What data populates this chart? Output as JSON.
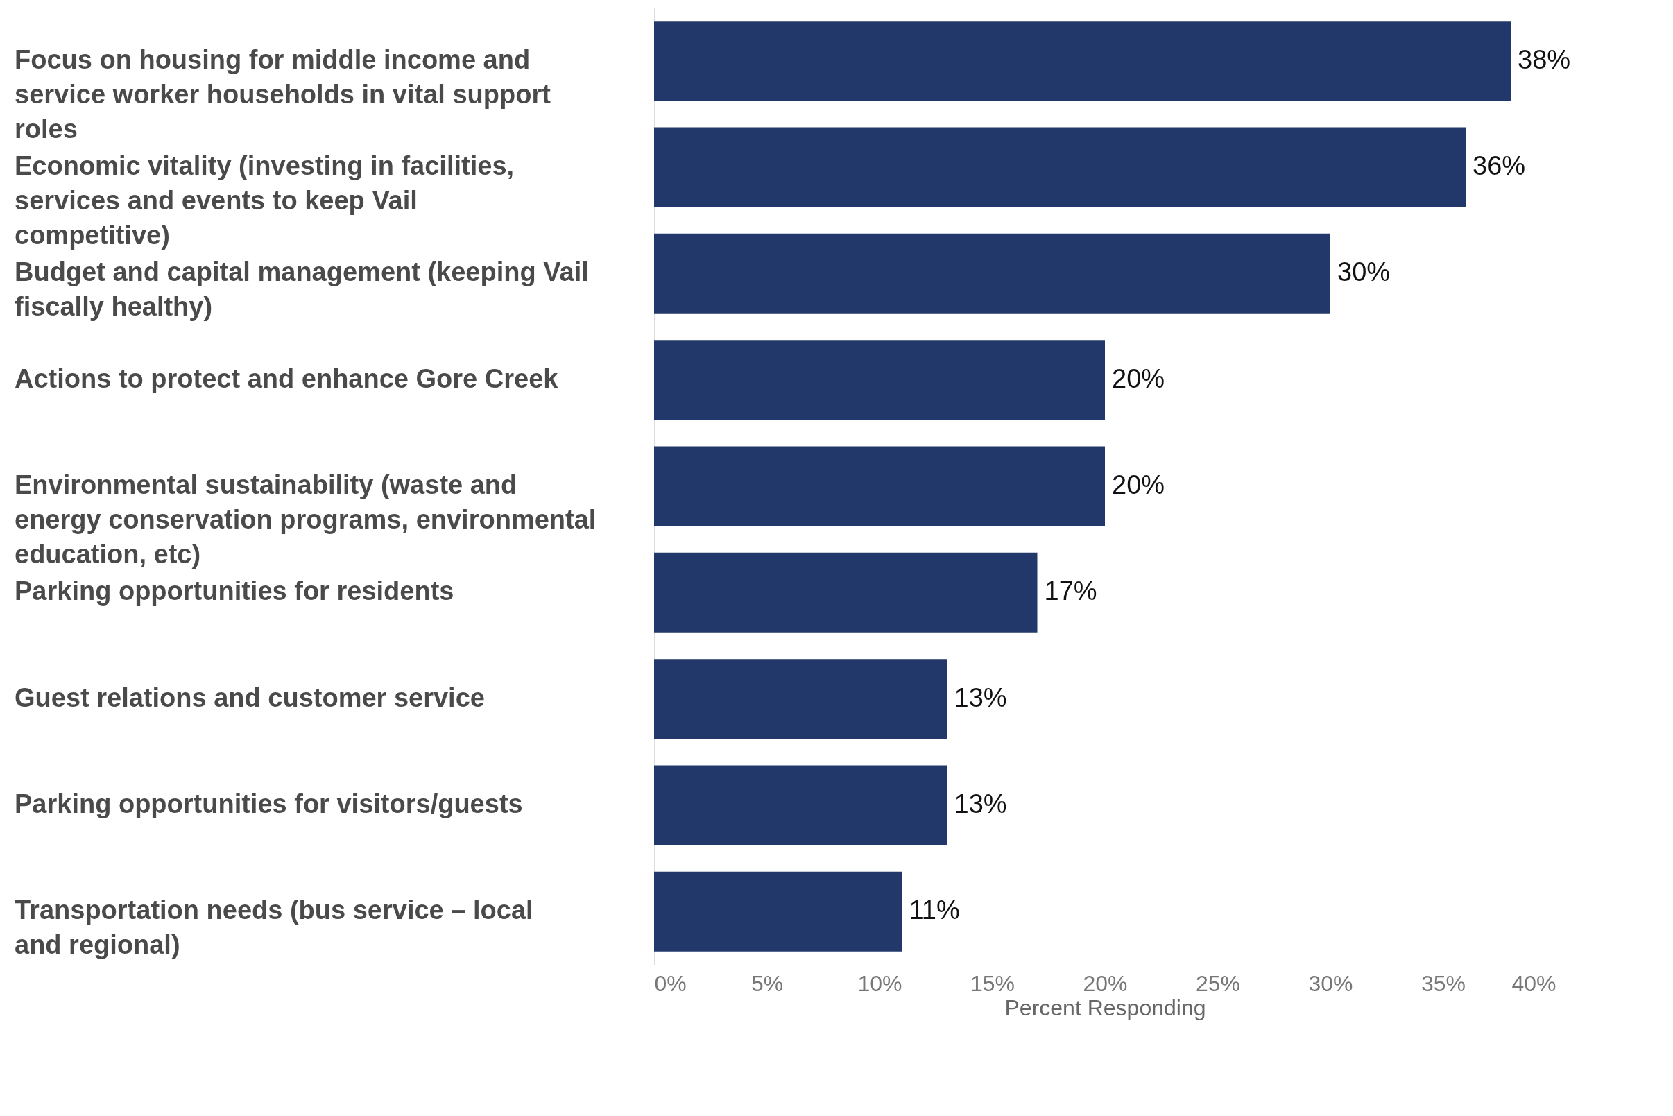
{
  "chart_data": {
    "type": "bar",
    "orientation": "horizontal",
    "xlabel": "Percent Responding",
    "categories": [
      "Focus on housing for middle income and service worker households in vital support roles",
      "Economic vitality (investing in facilities, services and events to keep Vail competitive)",
      "Budget and capital management (keeping Vail fiscally healthy)",
      "Actions to protect and enhance Gore Creek",
      "Environmental sustainability (waste and energy conservation programs, environmental education, etc)",
      "Parking opportunities for residents",
      "Guest relations and customer service",
      "Parking opportunities for visitors/guests",
      "Transportation needs (bus service – local and regional)"
    ],
    "values": [
      38,
      36,
      30,
      20,
      20,
      17,
      13,
      13,
      11
    ],
    "value_labels": [
      "38%",
      "36%",
      "30%",
      "20%",
      "20%",
      "17%",
      "13%",
      "13%",
      "11%"
    ],
    "color": "#22386a",
    "xlim": [
      0,
      40
    ],
    "xticks": [
      {
        "value": 0,
        "label": "0%"
      },
      {
        "value": 5,
        "label": "5%"
      },
      {
        "value": 10,
        "label": "10%"
      },
      {
        "value": 15,
        "label": "15%"
      },
      {
        "value": 20,
        "label": "20%"
      },
      {
        "value": 25,
        "label": "25%"
      },
      {
        "value": 30,
        "label": "30%"
      },
      {
        "value": 35,
        "label": "35%"
      },
      {
        "value": 40,
        "label": "40%"
      }
    ],
    "grid": false
  }
}
